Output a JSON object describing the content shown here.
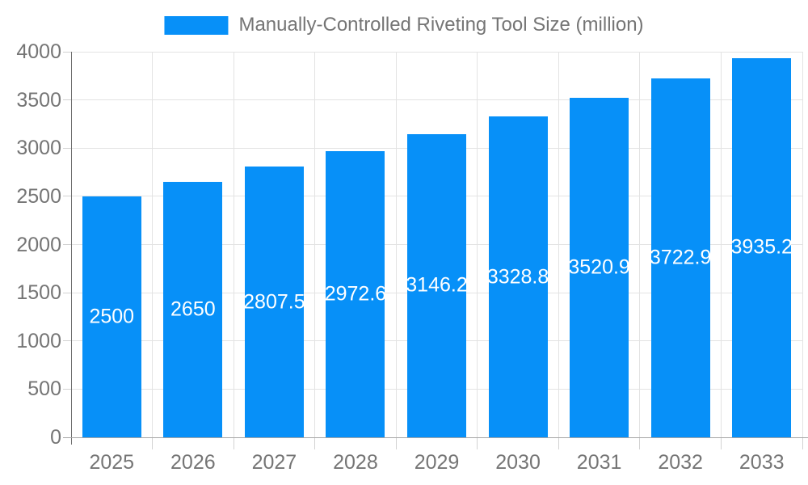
{
  "legend": {
    "label": "Manually-Controlled Riveting Tool Size (million)"
  },
  "colors": {
    "bar": "#0790F8",
    "axis_text": "#757575",
    "grid": "#e3e3e3",
    "tick": "#d2d2d2",
    "x_axis_line": "#a6a6a6",
    "y_axis_line": "#6f6f6f",
    "bar_label": "#ffffff",
    "background": "#ffffff"
  },
  "chart_data": {
    "type": "bar",
    "title": "Manually-Controlled Riveting Tool Size (million)",
    "categories": [
      "2025",
      "2026",
      "2027",
      "2028",
      "2029",
      "2030",
      "2031",
      "2032",
      "2033"
    ],
    "series": [
      {
        "name": "Manually-Controlled Riveting Tool Size (million)",
        "values": [
          2500,
          2650,
          2807.5,
          2972.6,
          3146.2,
          3328.8,
          3520.9,
          3722.9,
          3935.2
        ]
      }
    ],
    "data_labels": [
      "2500",
      "2650",
      "2807.5",
      "2972.6",
      "3146.2",
      "3328.8",
      "3520.9",
      "3722.9",
      "3935.2"
    ],
    "xlabel": "",
    "ylabel": "",
    "ylim": [
      0,
      4000
    ],
    "ytick_step": 500,
    "ytick_labels": [
      "0",
      "500",
      "1000",
      "1500",
      "2000",
      "2500",
      "3000",
      "3500",
      "4000"
    ],
    "grid": true,
    "legend_position": "top",
    "bar_label_position": "inside-middle"
  }
}
